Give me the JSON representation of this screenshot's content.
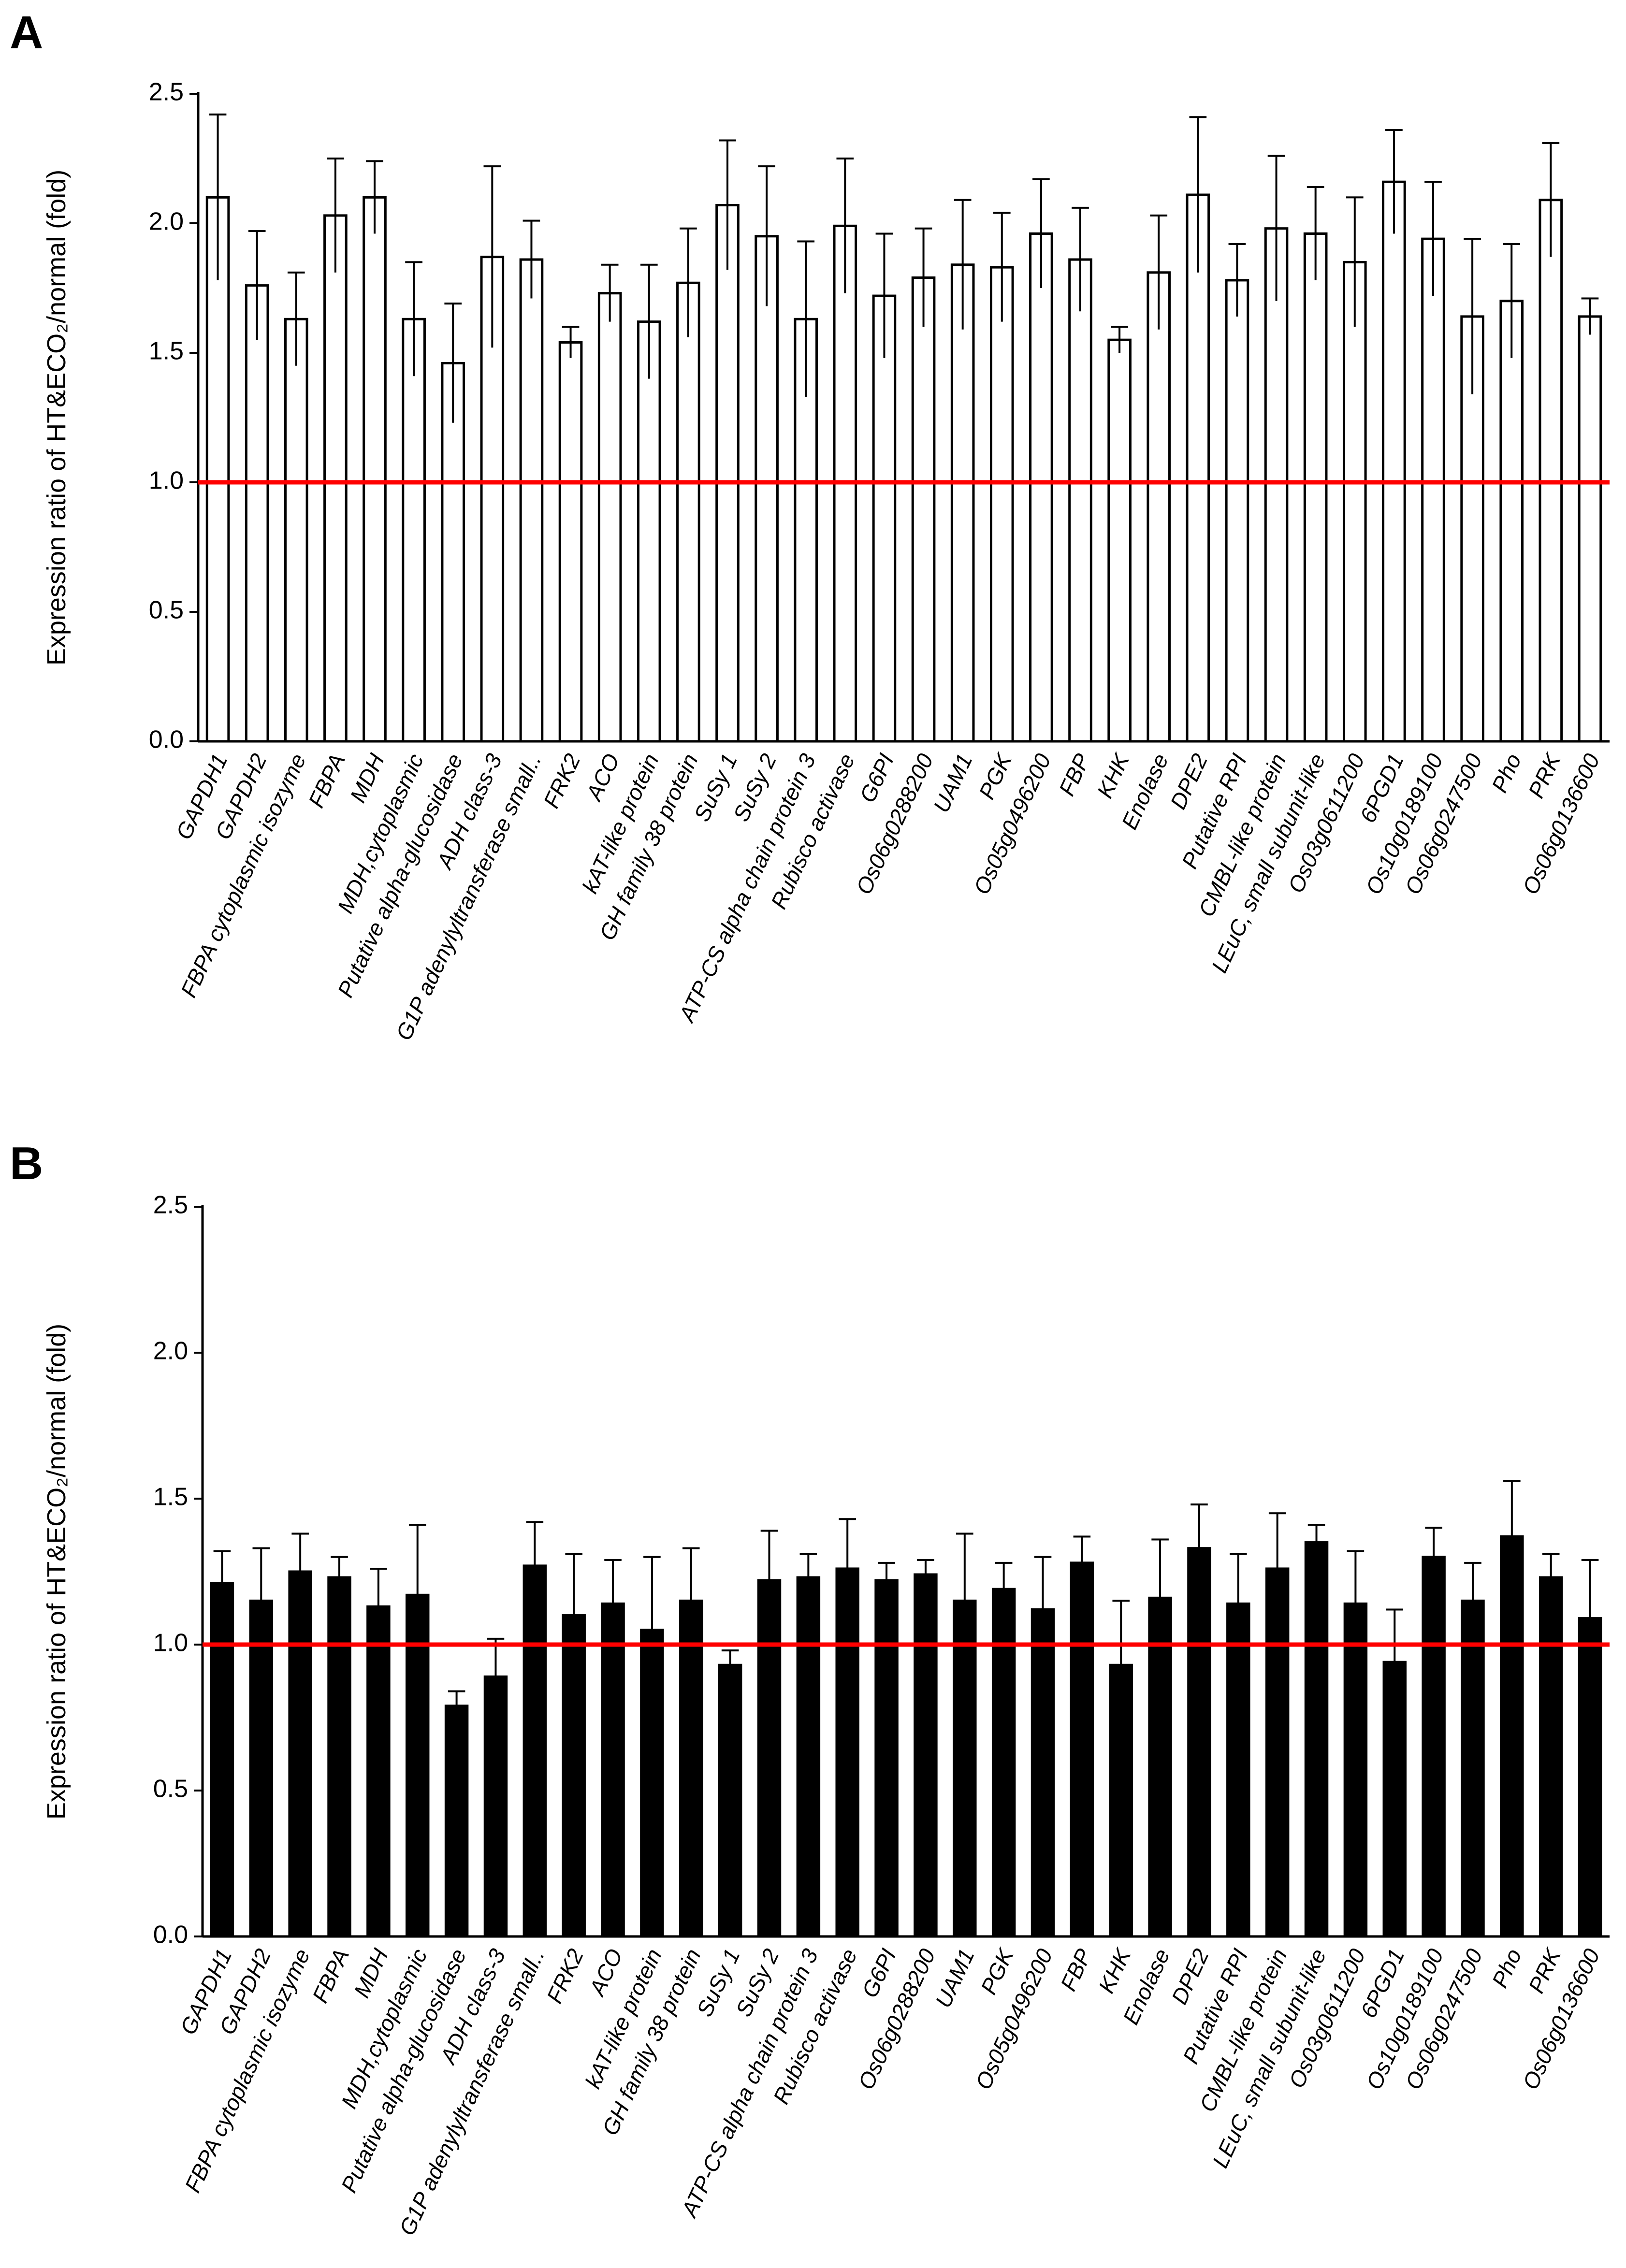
{
  "chart_data": [
    {
      "type": "bar",
      "panel_label": "A",
      "y_label": "Expression ratio of HT&ECO₂/normal (fold)",
      "categories": [
        "GAPDH1",
        "GAPDH2",
        "FBPA cytoplasmic isozyme",
        "FBPA",
        "MDH",
        "MDH,cytoplasmic",
        "Putative alpha-glucosidase",
        "ADH class-3",
        "G1P adenylyltransferase small..",
        "FRK2",
        "ACO",
        "kAT-like protein",
        "GH family 38 protein",
        "SuSy 1",
        "SuSy 2",
        "ATP-CS alpha chain protein 3",
        "Rubisco activase",
        "G6PI",
        "Os06g0288200",
        "UAM1",
        "PGK",
        "Os05g0496200",
        "FBP",
        "KHK",
        "Enolase",
        "DPE2",
        "Putative RPI",
        "CMBL-like protein",
        "LEuC, small subunit-like",
        "Os03g0611200",
        "6PGD1",
        "Os10g0189100",
        "Os06g0247500",
        "Pho",
        "PRK",
        "Os06g0136600"
      ],
      "values": [
        2.1,
        1.76,
        1.63,
        2.03,
        2.1,
        1.63,
        1.46,
        1.87,
        1.86,
        1.54,
        1.73,
        1.62,
        1.77,
        2.07,
        1.95,
        1.63,
        1.99,
        1.72,
        1.79,
        1.84,
        1.83,
        1.96,
        1.86,
        1.55,
        1.81,
        2.11,
        1.78,
        1.98,
        1.96,
        1.85,
        2.16,
        1.94,
        1.64,
        1.7,
        2.09,
        1.64
      ],
      "errors": [
        0.32,
        0.21,
        0.18,
        0.22,
        0.14,
        0.22,
        0.23,
        0.35,
        0.15,
        0.06,
        0.11,
        0.22,
        0.21,
        0.25,
        0.27,
        0.3,
        0.26,
        0.24,
        0.19,
        0.25,
        0.21,
        0.21,
        0.2,
        0.05,
        0.22,
        0.3,
        0.14,
        0.28,
        0.18,
        0.25,
        0.2,
        0.22,
        0.3,
        0.22,
        0.22,
        0.07
      ],
      "color": "#ffffff",
      "edgecolor": "#000000",
      "ylim": [
        0,
        2.5
      ],
      "yticks": [
        {
          "value": 0,
          "label": "0.0"
        },
        {
          "value": 0.5,
          "label": "0.5"
        },
        {
          "value": 1,
          "label": "1.0"
        },
        {
          "value": 1.5,
          "label": "1.5"
        },
        {
          "value": 2,
          "label": "2.0"
        },
        {
          "value": 2.5,
          "label": "2.5"
        }
      ],
      "reference_line": {
        "value": 1,
        "color": "#ff0000"
      }
    },
    {
      "type": "bar",
      "panel_label": "B",
      "y_label": "Expression ratio of HT&ECO₂/normal (fold)",
      "categories": [
        "GAPDH1",
        "GAPDH2",
        "FBPA cytoplasmic isozyme",
        "FBPA",
        "MDH",
        "MDH,cytoplasmic",
        "Putative alpha-glucosidase",
        "ADH class-3",
        "G1P adenylyltransferase small..",
        "FRK2",
        "ACO",
        "kAT-like protein",
        "GH family 38 protein",
        "SuSy 1",
        "SuSy 2",
        "ATP-CS alpha chain protein 3",
        "Rubisco activase",
        "G6PI",
        "Os06g0288200",
        "UAM1",
        "PGK",
        "Os05g0496200",
        "FBP",
        "KHK",
        "Enolase",
        "DPE2",
        "Putative RPI",
        "CMBL-like protein",
        "LEuC, small subunit-like",
        "Os03g0611200",
        "6PGD1",
        "Os10g0189100",
        "Os06g0247500",
        "Pho",
        "PRK",
        "Os06g0136600"
      ],
      "values": [
        1.21,
        1.15,
        1.25,
        1.23,
        1.13,
        1.17,
        0.79,
        0.89,
        1.27,
        1.1,
        1.14,
        1.05,
        1.15,
        0.93,
        1.22,
        1.23,
        1.26,
        1.22,
        1.24,
        1.15,
        1.19,
        1.12,
        1.28,
        0.93,
        1.16,
        1.33,
        1.14,
        1.26,
        1.35,
        1.14,
        0.94,
        1.3,
        1.15,
        1.37,
        1.23,
        1.09
      ],
      "errors": [
        0.11,
        0.18,
        0.13,
        0.07,
        0.13,
        0.24,
        0.05,
        0.13,
        0.15,
        0.21,
        0.15,
        0.25,
        0.18,
        0.05,
        0.17,
        0.08,
        0.17,
        0.06,
        0.05,
        0.23,
        0.09,
        0.18,
        0.09,
        0.22,
        0.2,
        0.15,
        0.17,
        0.19,
        0.06,
        0.18,
        0.18,
        0.1,
        0.13,
        0.19,
        0.08,
        0.2
      ],
      "color": "#000000",
      "edgecolor": "#000000",
      "ylim": [
        0,
        2.5
      ],
      "yticks": [
        {
          "value": 0,
          "label": "0.0"
        },
        {
          "value": 0.5,
          "label": "0.5"
        },
        {
          "value": 1,
          "label": "1.0"
        },
        {
          "value": 1.5,
          "label": "1.5"
        },
        {
          "value": 2,
          "label": "2.0"
        },
        {
          "value": 2.5,
          "label": "2.5"
        }
      ],
      "reference_line": {
        "value": 1,
        "color": "#ff0000"
      }
    }
  ]
}
